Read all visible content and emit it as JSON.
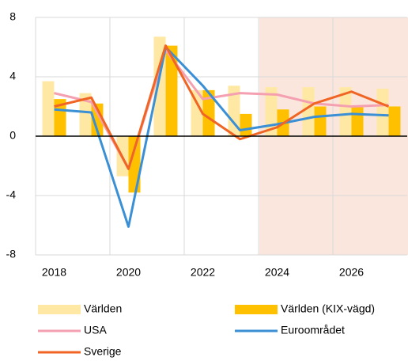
{
  "chart_data": {
    "type": "bar",
    "categories": [
      "2018",
      null,
      "2020",
      null,
      "2022",
      null,
      "2024",
      null,
      "2026",
      null
    ],
    "series": [
      {
        "name": "Världen",
        "type": "bar",
        "color": "#ffe8a3",
        "values": [
          3.7,
          2.9,
          -2.7,
          6.7,
          3.1,
          3.4,
          3.3,
          3.3,
          3.3,
          3.2
        ]
      },
      {
        "name": "Världen (KIX-vägd)",
        "type": "bar",
        "color": "#ffc000",
        "values": [
          2.5,
          2.2,
          -3.8,
          6.1,
          3.1,
          1.5,
          1.8,
          2.0,
          2.0,
          2.0
        ]
      },
      {
        "name": "USA",
        "type": "line",
        "color": "#f4a0b0",
        "values": [
          2.9,
          2.3,
          -2.2,
          5.8,
          2.5,
          2.9,
          2.8,
          2.2,
          2.0,
          2.1
        ]
      },
      {
        "name": "Euroområdet",
        "type": "line",
        "color": "#3b8fd5",
        "values": [
          1.8,
          1.6,
          -6.1,
          6.0,
          3.4,
          0.4,
          0.8,
          1.3,
          1.5,
          1.4
        ]
      },
      {
        "name": "Sverige",
        "type": "line",
        "color": "#f06424",
        "values": [
          2.0,
          2.6,
          -2.2,
          6.1,
          1.5,
          -0.2,
          0.6,
          2.2,
          3.0,
          2.0
        ]
      }
    ],
    "ylim": [
      -8,
      8
    ],
    "yticks": [
      -8,
      -4,
      0,
      4,
      8
    ],
    "grid": true
  }
}
